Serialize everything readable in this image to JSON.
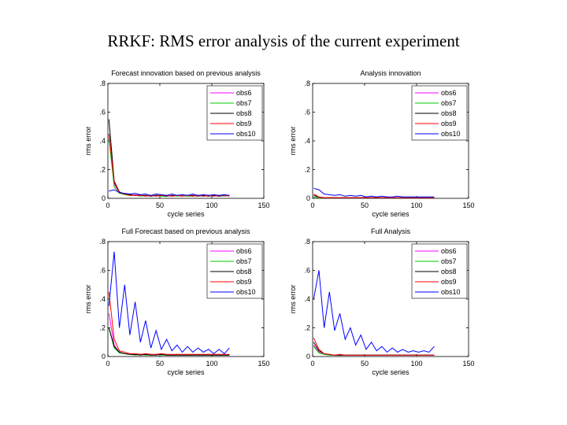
{
  "slide": {
    "title": "RRKF: RMS error analysis of the current experiment"
  },
  "chart_data": [
    {
      "type": "line",
      "title": "Forecast innovation based on previous analysis",
      "xlabel": "cycle series",
      "ylabel": "rms error",
      "xlim": [
        0,
        150
      ],
      "ylim": [
        0,
        0.8
      ],
      "xticks": [
        0,
        50,
        100,
        150
      ],
      "yticks": [
        0,
        0.2,
        0.4,
        0.6,
        0.8
      ],
      "legend_position": "top-right",
      "series": [
        {
          "name": "obs6",
          "color": "#ff00ff",
          "values": [
            0.45,
            0.1,
            0.04,
            0.03,
            0.02,
            0.025,
            0.02,
            0.015,
            0.02,
            0.02,
            0.015,
            0.02,
            0.015,
            0.02,
            0.02,
            0.015,
            0.02,
            0.02,
            0.015,
            0.02,
            0.02,
            0.015,
            0.02,
            0.02
          ]
        },
        {
          "name": "obs7",
          "color": "#00cc00",
          "values": [
            0.42,
            0.08,
            0.035,
            0.025,
            0.02,
            0.02,
            0.015,
            0.02,
            0.015,
            0.02,
            0.015,
            0.015,
            0.02,
            0.015,
            0.02,
            0.015,
            0.015,
            0.02,
            0.015,
            0.02,
            0.015,
            0.02,
            0.015,
            0.02
          ]
        },
        {
          "name": "obs8",
          "color": "#000000",
          "values": [
            0.55,
            0.12,
            0.045,
            0.03,
            0.025,
            0.02,
            0.02,
            0.02,
            0.015,
            0.02,
            0.02,
            0.015,
            0.02,
            0.02,
            0.015,
            0.02,
            0.02,
            0.015,
            0.02,
            0.015,
            0.02,
            0.015,
            0.02,
            0.02
          ]
        },
        {
          "name": "obs9",
          "color": "#ff0000",
          "values": [
            0.45,
            0.11,
            0.04,
            0.03,
            0.02,
            0.02,
            0.02,
            0.015,
            0.02,
            0.015,
            0.02,
            0.02,
            0.015,
            0.02,
            0.015,
            0.02,
            0.015,
            0.02,
            0.015,
            0.02,
            0.015,
            0.02,
            0.02,
            0.015
          ]
        },
        {
          "name": "obs10",
          "color": "#0000ff",
          "values": [
            0.05,
            0.06,
            0.04,
            0.035,
            0.03,
            0.035,
            0.025,
            0.03,
            0.02,
            0.03,
            0.025,
            0.02,
            0.03,
            0.02,
            0.025,
            0.02,
            0.03,
            0.02,
            0.025,
            0.02,
            0.025,
            0.02,
            0.025,
            0.02
          ]
        }
      ]
    },
    {
      "type": "line",
      "title": "Analysis innovation",
      "xlabel": "cycle series",
      "ylabel": "rms error",
      "xlim": [
        0,
        150
      ],
      "ylim": [
        0,
        0.8
      ],
      "xticks": [
        0,
        50,
        100,
        150
      ],
      "yticks": [
        0,
        0.2,
        0.4,
        0.6,
        0.8
      ],
      "legend_position": "top-right",
      "series": [
        {
          "name": "obs6",
          "color": "#ff00ff",
          "values": [
            0.01,
            0.005,
            0.005,
            0.005,
            0.005,
            0.005,
            0.005,
            0.005,
            0.005,
            0.005,
            0.005,
            0.005,
            0.005,
            0.005,
            0.005,
            0.005,
            0.005,
            0.005,
            0.005,
            0.005,
            0.005,
            0.005,
            0.005,
            0.005
          ]
        },
        {
          "name": "obs7",
          "color": "#00cc00",
          "values": [
            0.01,
            0.005,
            0.005,
            0.005,
            0.005,
            0.005,
            0.005,
            0.005,
            0.005,
            0.005,
            0.005,
            0.005,
            0.005,
            0.005,
            0.005,
            0.005,
            0.005,
            0.005,
            0.005,
            0.005,
            0.005,
            0.005,
            0.005,
            0.005
          ]
        },
        {
          "name": "obs8",
          "color": "#000000",
          "values": [
            0.02,
            0.01,
            0.005,
            0.005,
            0.005,
            0.005,
            0.005,
            0.005,
            0.005,
            0.005,
            0.005,
            0.005,
            0.005,
            0.005,
            0.005,
            0.005,
            0.005,
            0.005,
            0.005,
            0.005,
            0.005,
            0.005,
            0.005,
            0.005
          ]
        },
        {
          "name": "obs9",
          "color": "#ff0000",
          "values": [
            0.03,
            0.01,
            0.005,
            0.005,
            0.005,
            0.005,
            0.005,
            0.005,
            0.005,
            0.005,
            0.005,
            0.005,
            0.005,
            0.005,
            0.005,
            0.005,
            0.005,
            0.005,
            0.005,
            0.005,
            0.005,
            0.005,
            0.005,
            0.005
          ]
        },
        {
          "name": "obs10",
          "color": "#0000ff",
          "values": [
            0.07,
            0.06,
            0.03,
            0.025,
            0.02,
            0.025,
            0.015,
            0.02,
            0.015,
            0.02,
            0.01,
            0.015,
            0.01,
            0.015,
            0.01,
            0.01,
            0.015,
            0.01,
            0.01,
            0.01,
            0.01,
            0.01,
            0.01,
            0.01
          ]
        }
      ]
    },
    {
      "type": "line",
      "title": "Full Forecast based on previous analysis",
      "xlabel": "cycle series",
      "ylabel": "rms error",
      "xlim": [
        0,
        150
      ],
      "ylim": [
        0,
        0.8
      ],
      "xticks": [
        0,
        50,
        100,
        150
      ],
      "yticks": [
        0,
        0.2,
        0.4,
        0.6,
        0.8
      ],
      "legend_position": "top-right",
      "series": [
        {
          "name": "obs6",
          "color": "#ff00ff",
          "values": [
            0.3,
            0.08,
            0.03,
            0.02,
            0.015,
            0.015,
            0.015,
            0.01,
            0.015,
            0.01,
            0.015,
            0.01,
            0.01,
            0.015,
            0.01,
            0.01,
            0.015,
            0.01,
            0.01,
            0.015,
            0.01,
            0.01,
            0.01,
            0.01
          ]
        },
        {
          "name": "obs7",
          "color": "#00cc00",
          "values": [
            0.2,
            0.06,
            0.025,
            0.02,
            0.015,
            0.01,
            0.015,
            0.01,
            0.01,
            0.015,
            0.01,
            0.01,
            0.01,
            0.01,
            0.01,
            0.01,
            0.01,
            0.01,
            0.01,
            0.01,
            0.01,
            0.01,
            0.01,
            0.01
          ]
        },
        {
          "name": "obs8",
          "color": "#000000",
          "values": [
            0.2,
            0.07,
            0.03,
            0.02,
            0.015,
            0.015,
            0.01,
            0.015,
            0.01,
            0.01,
            0.015,
            0.01,
            0.01,
            0.01,
            0.01,
            0.01,
            0.01,
            0.01,
            0.01,
            0.01,
            0.01,
            0.01,
            0.01,
            0.01
          ]
        },
        {
          "name": "obs9",
          "color": "#ff0000",
          "values": [
            0.45,
            0.12,
            0.04,
            0.03,
            0.02,
            0.02,
            0.015,
            0.02,
            0.015,
            0.015,
            0.02,
            0.015,
            0.015,
            0.015,
            0.015,
            0.015,
            0.015,
            0.015,
            0.015,
            0.015,
            0.015,
            0.015,
            0.015,
            0.015
          ]
        },
        {
          "name": "obs10",
          "color": "#0000ff",
          "values": [
            0.35,
            0.73,
            0.2,
            0.5,
            0.15,
            0.38,
            0.1,
            0.25,
            0.06,
            0.18,
            0.05,
            0.12,
            0.04,
            0.08,
            0.03,
            0.07,
            0.03,
            0.06,
            0.03,
            0.05,
            0.02,
            0.05,
            0.02,
            0.06
          ]
        }
      ]
    },
    {
      "type": "line",
      "title": "Full Analysis",
      "xlabel": "cycle series",
      "ylabel": "rms error",
      "xlim": [
        0,
        150
      ],
      "ylim": [
        0,
        0.8
      ],
      "xticks": [
        0,
        50,
        100,
        150
      ],
      "yticks": [
        0,
        0.2,
        0.4,
        0.6,
        0.8
      ],
      "legend_position": "top-right",
      "series": [
        {
          "name": "obs6",
          "color": "#ff00ff",
          "values": [
            0.08,
            0.03,
            0.015,
            0.01,
            0.01,
            0.01,
            0.01,
            0.01,
            0.01,
            0.01,
            0.01,
            0.01,
            0.01,
            0.01,
            0.01,
            0.01,
            0.01,
            0.01,
            0.01,
            0.01,
            0.01,
            0.01,
            0.01,
            0.01
          ]
        },
        {
          "name": "obs7",
          "color": "#00cc00",
          "values": [
            0.07,
            0.025,
            0.015,
            0.01,
            0.01,
            0.01,
            0.01,
            0.01,
            0.01,
            0.01,
            0.01,
            0.01,
            0.01,
            0.01,
            0.01,
            0.01,
            0.01,
            0.01,
            0.01,
            0.01,
            0.01,
            0.01,
            0.01,
            0.01
          ]
        },
        {
          "name": "obs8",
          "color": "#000000",
          "values": [
            0.1,
            0.04,
            0.02,
            0.015,
            0.01,
            0.01,
            0.01,
            0.01,
            0.01,
            0.01,
            0.01,
            0.01,
            0.01,
            0.01,
            0.01,
            0.01,
            0.01,
            0.01,
            0.01,
            0.01,
            0.01,
            0.01,
            0.01,
            0.01
          ]
        },
        {
          "name": "obs9",
          "color": "#ff0000",
          "values": [
            0.13,
            0.05,
            0.02,
            0.015,
            0.01,
            0.015,
            0.01,
            0.01,
            0.01,
            0.01,
            0.01,
            0.01,
            0.01,
            0.01,
            0.01,
            0.01,
            0.01,
            0.01,
            0.01,
            0.01,
            0.01,
            0.01,
            0.01,
            0.01
          ]
        },
        {
          "name": "obs10",
          "color": "#0000ff",
          "values": [
            0.4,
            0.6,
            0.2,
            0.45,
            0.18,
            0.3,
            0.12,
            0.2,
            0.08,
            0.15,
            0.05,
            0.1,
            0.04,
            0.07,
            0.03,
            0.06,
            0.03,
            0.05,
            0.03,
            0.04,
            0.03,
            0.04,
            0.03,
            0.07
          ]
        }
      ]
    }
  ]
}
